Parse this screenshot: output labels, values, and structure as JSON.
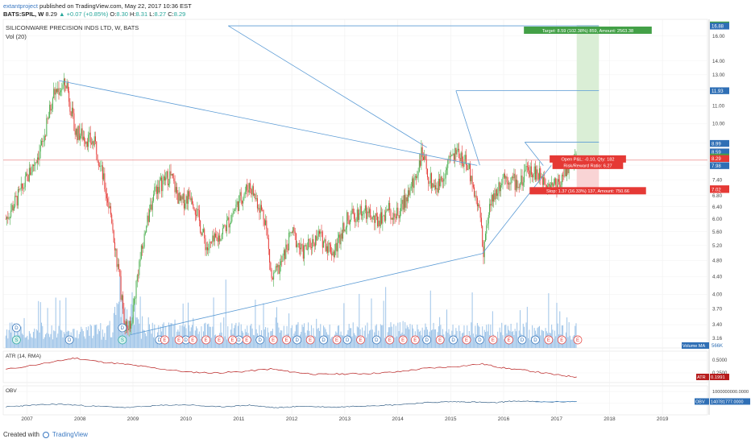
{
  "header": {
    "user": "extantproject",
    "published": " published on TradingView.com, May 22, 2017 10:36 EST",
    "symbol": "BATS:SPIL, W",
    "last": "8.29",
    "change": "▲ +0.07 (+0.85%)",
    "o_label": "O:",
    "o": "8.30",
    "h_label": "H:",
    "h": "8.31",
    "l_label": "L:",
    "l": "8.27",
    "c_label": "C:",
    "c": "8.29"
  },
  "legend": {
    "name": "SILICONWARE PRECISION INDS LTD, W, BATS",
    "vol": "Vol (20)"
  },
  "colors": {
    "up": "#26a69a",
    "down": "#ef5350",
    "candle_up": "#4caf50",
    "candle_down": "#e53935",
    "trend": "#5b9bd5",
    "volume": "#9ec4e8",
    "atr": "#b71c1c",
    "obv": "#1f4e79",
    "target_zone": "#d6ecd2",
    "stop_zone": "#f8cfd0"
  },
  "chart_data": [
    {
      "type": "candlestick",
      "title": "SILICONWARE PRECISION INDS LTD, W, BATS",
      "y_scale": "log",
      "ylim": [
        3.0,
        17.5
      ],
      "xlim": [
        2006.55,
        2019.85
      ],
      "x_ticks": [
        "2007",
        "2008",
        "2009",
        "2010",
        "2011",
        "2012",
        "2013",
        "2014",
        "2015",
        "2016",
        "2017",
        "2018",
        "2019"
      ],
      "y_ticks": [
        "16.00",
        "14.00",
        "13.00",
        "12.00",
        "11.00",
        "10.00",
        "9.00",
        "8.00",
        "7.40",
        "6.80",
        "6.40",
        "6.00",
        "5.60",
        "5.20",
        "4.80",
        "4.40",
        "4.00",
        "3.70",
        "3.40",
        "3.16"
      ],
      "price_path": [
        [
          2006.6,
          6.0
        ],
        [
          2006.9,
          7.0
        ],
        [
          2007.3,
          9.0
        ],
        [
          2007.5,
          11.8
        ],
        [
          2007.75,
          12.4
        ],
        [
          2007.9,
          9.6
        ],
        [
          2008.1,
          9.3
        ],
        [
          2008.3,
          8.9
        ],
        [
          2008.6,
          6.0
        ],
        [
          2008.85,
          3.4
        ],
        [
          2008.95,
          3.3
        ],
        [
          2009.1,
          4.6
        ],
        [
          2009.4,
          7.0
        ],
        [
          2009.7,
          7.6
        ],
        [
          2009.9,
          6.5
        ],
        [
          2010.1,
          6.9
        ],
        [
          2010.4,
          5.1
        ],
        [
          2010.6,
          5.4
        ],
        [
          2010.8,
          5.9
        ],
        [
          2011.0,
          6.6
        ],
        [
          2011.2,
          7.2
        ],
        [
          2011.5,
          6.0
        ],
        [
          2011.62,
          4.3
        ],
        [
          2011.8,
          4.7
        ],
        [
          2012.0,
          5.6
        ],
        [
          2012.2,
          5.0
        ],
        [
          2012.5,
          5.5
        ],
        [
          2012.8,
          5.0
        ],
        [
          2013.0,
          5.9
        ],
        [
          2013.3,
          6.3
        ],
        [
          2013.6,
          5.9
        ],
        [
          2013.8,
          6.3
        ],
        [
          2014.0,
          6.1
        ],
        [
          2014.3,
          7.3
        ],
        [
          2014.45,
          8.5
        ],
        [
          2014.6,
          7.4
        ],
        [
          2014.75,
          7.1
        ],
        [
          2015.0,
          8.3
        ],
        [
          2015.15,
          8.6
        ],
        [
          2015.35,
          7.8
        ],
        [
          2015.55,
          6.2
        ],
        [
          2015.62,
          5.1
        ],
        [
          2015.75,
          6.5
        ],
        [
          2016.0,
          7.6
        ],
        [
          2016.3,
          7.2
        ],
        [
          2016.5,
          7.9
        ],
        [
          2016.7,
          7.5
        ],
        [
          2017.0,
          7.2
        ],
        [
          2017.2,
          7.9
        ],
        [
          2017.38,
          8.29
        ]
      ],
      "trendlines": [
        [
          [
            2007.6,
            12.6
          ],
          [
            2015.5,
            7.99
          ]
        ],
        [
          [
            2008.95,
            3.22
          ],
          [
            2015.6,
            4.98
          ]
        ],
        [
          [
            2015.6,
            4.98
          ],
          [
            2016.9,
            7.99
          ]
        ],
        [
          [
            2010.8,
            16.9
          ],
          [
            2017.8,
            16.9
          ]
        ],
        [
          [
            2010.8,
            16.9
          ],
          [
            2014.55,
            8.8
          ]
        ],
        [
          [
            2015.1,
            11.93
          ],
          [
            2017.8,
            11.93
          ]
        ],
        [
          [
            2015.1,
            11.93
          ],
          [
            2015.55,
            8.0
          ]
        ],
        [
          [
            2016.4,
            9.05
          ],
          [
            2017.8,
            9.05
          ]
        ],
        [
          [
            2016.4,
            9.05
          ],
          [
            2016.75,
            7.98
          ]
        ]
      ],
      "resistance_line": 8.22,
      "position": {
        "type": "long",
        "entry": 8.29,
        "target": 16.98,
        "stop": 7.02,
        "target_label": "Target: 8.59 (102.38%) 859, Amount: 2563.38",
        "pnl_label": "Open P&L: -0.10, Qty: 182",
        "ratio_label": "Risk/Reward Ratio: 6.27",
        "stop_label": "Stop: 1.37 (16.33%) 137, Amount: 750.66"
      },
      "price_tags": [
        {
          "value": "16.98",
          "style": "green"
        },
        {
          "value": "16.88",
          "style": "blue"
        },
        {
          "value": "11.93",
          "style": "blue"
        },
        {
          "value": "8.99",
          "style": "blue"
        },
        {
          "value": "8.59",
          "style": "blue"
        },
        {
          "value": "8.36",
          "style": "green"
        },
        {
          "value": "8.29",
          "style": "red"
        },
        {
          "value": "7.98",
          "style": "blue"
        },
        {
          "value": "7.05",
          "style": "red"
        },
        {
          "value": "7.02",
          "style": "red"
        }
      ],
      "events": [
        {
          "x": 2006.8,
          "labels": [
            "D",
            "S"
          ]
        },
        {
          "x": 2007.8,
          "labels": [
            "D"
          ]
        },
        {
          "x": 2008.8,
          "labels": [
            "D",
            "S"
          ]
        },
        {
          "x": 2009.5,
          "labels": [
            "D"
          ]
        },
        {
          "x": 2010.0,
          "labels": [
            "D"
          ]
        },
        {
          "x": 2011.0,
          "labels": [
            "D"
          ]
        },
        {
          "x": 2011.4,
          "labels": [
            "D"
          ]
        },
        {
          "x": 2012.1,
          "labels": [
            "D"
          ]
        },
        {
          "x": 2012.6,
          "labels": [
            "D"
          ]
        },
        {
          "x": 2013.05,
          "labels": [
            "D"
          ]
        },
        {
          "x": 2013.6,
          "labels": [
            "D"
          ]
        },
        {
          "x": 2014.55,
          "labels": [
            "D"
          ]
        },
        {
          "x": 2015.05,
          "labels": [
            "D"
          ]
        },
        {
          "x": 2015.55,
          "labels": [
            "D"
          ]
        },
        {
          "x": 2016.35,
          "labels": [
            "D"
          ]
        },
        {
          "x": 2016.6,
          "labels": [
            "D"
          ]
        },
        {
          "x": 2009.6,
          "labels": [
            "E"
          ]
        },
        {
          "x": 2009.87,
          "labels": [
            "E"
          ]
        },
        {
          "x": 2010.13,
          "labels": [
            "E"
          ]
        },
        {
          "x": 2010.38,
          "labels": [
            "E"
          ]
        },
        {
          "x": 2010.63,
          "labels": [
            "E"
          ]
        },
        {
          "x": 2010.88,
          "labels": [
            "E"
          ]
        },
        {
          "x": 2011.15,
          "labels": [
            "E"
          ]
        },
        {
          "x": 2011.65,
          "labels": [
            "E"
          ]
        },
        {
          "x": 2011.9,
          "labels": [
            "E"
          ]
        },
        {
          "x": 2012.35,
          "labels": [
            "E"
          ]
        },
        {
          "x": 2012.85,
          "labels": [
            "E"
          ]
        },
        {
          "x": 2013.3,
          "labels": [
            "E"
          ]
        },
        {
          "x": 2013.85,
          "labels": [
            "E"
          ]
        },
        {
          "x": 2014.1,
          "labels": [
            "E"
          ]
        },
        {
          "x": 2014.33,
          "labels": [
            "E"
          ]
        },
        {
          "x": 2014.8,
          "labels": [
            "E"
          ]
        },
        {
          "x": 2015.3,
          "labels": [
            "E"
          ]
        },
        {
          "x": 2015.8,
          "labels": [
            "E"
          ]
        },
        {
          "x": 2016.1,
          "labels": [
            "E"
          ]
        },
        {
          "x": 2016.85,
          "labels": [
            "E"
          ]
        },
        {
          "x": 2017.1,
          "labels": [
            "E"
          ]
        },
        {
          "x": 2017.4,
          "labels": [
            "E"
          ]
        }
      ],
      "volume_label": "Volume MA",
      "volume_value": "566K"
    },
    {
      "type": "line",
      "title": "ATR (14, RMA)",
      "y_ticks": [
        "0.5000",
        "0.2500"
      ],
      "series": [
        {
          "name": "ATR",
          "last_value": "0.1991",
          "points": [
            [
              2006.6,
              0.35
            ],
            [
              2007.5,
              0.5
            ],
            [
              2007.9,
              0.58
            ],
            [
              2008.4,
              0.5
            ],
            [
              2008.9,
              0.45
            ],
            [
              2009.4,
              0.38
            ],
            [
              2010.0,
              0.3
            ],
            [
              2010.5,
              0.28
            ],
            [
              2011.0,
              0.3
            ],
            [
              2011.6,
              0.36
            ],
            [
              2012.0,
              0.3
            ],
            [
              2012.5,
              0.25
            ],
            [
              2013.0,
              0.26
            ],
            [
              2013.5,
              0.27
            ],
            [
              2014.0,
              0.3
            ],
            [
              2014.5,
              0.37
            ],
            [
              2015.0,
              0.4
            ],
            [
              2015.6,
              0.46
            ],
            [
              2016.0,
              0.38
            ],
            [
              2016.5,
              0.32
            ],
            [
              2017.0,
              0.24
            ],
            [
              2017.38,
              0.1991
            ]
          ]
        }
      ]
    },
    {
      "type": "line",
      "title": "OBV",
      "y_ticks": [
        "1000000000.0000",
        "0.0000"
      ],
      "series": [
        {
          "name": "OBV",
          "last_value": "140781777.0000",
          "points": [
            [
              2006.6,
              -320000000
            ],
            [
              2007.0,
              -200000000
            ],
            [
              2007.6,
              -80000000
            ],
            [
              2008.2,
              -250000000
            ],
            [
              2008.9,
              -380000000
            ],
            [
              2009.5,
              -200000000
            ],
            [
              2010.0,
              -140000000
            ],
            [
              2010.6,
              -330000000
            ],
            [
              2011.2,
              -180000000
            ],
            [
              2011.7,
              -400000000
            ],
            [
              2012.2,
              -270000000
            ],
            [
              2012.8,
              -350000000
            ],
            [
              2013.3,
              -240000000
            ],
            [
              2013.9,
              -160000000
            ],
            [
              2014.5,
              40000000
            ],
            [
              2015.0,
              120000000
            ],
            [
              2015.4,
              100000000
            ],
            [
              2015.8,
              30000000
            ],
            [
              2016.2,
              180000000
            ],
            [
              2016.8,
              100000000
            ],
            [
              2017.38,
              140781777
            ]
          ]
        }
      ]
    }
  ],
  "footer": {
    "created": "Created with",
    "brand": "TradingView"
  }
}
